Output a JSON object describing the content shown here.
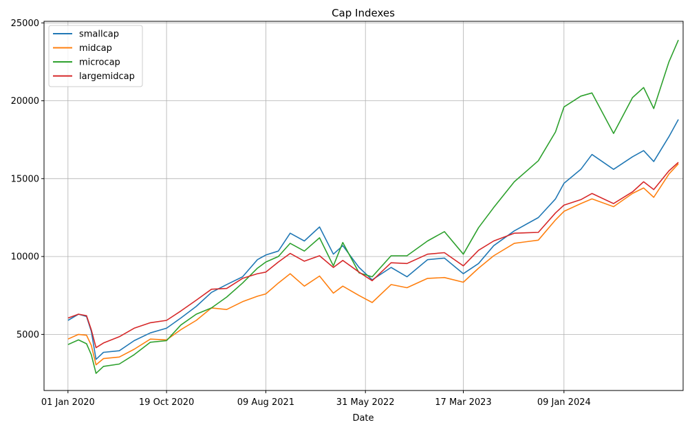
{
  "chart_data": {
    "type": "line",
    "title": "Cap Indexes",
    "xlabel": "Date",
    "ylabel": "",
    "x_tick_labels": [
      "01 Jan 2020",
      "19 Oct 2020",
      "09 Aug 2021",
      "31 May 2022",
      "17 Mar 2023",
      "09 Jan 2024"
    ],
    "x_tick_dates": [
      "2020-01-01",
      "2020-10-19",
      "2021-08-09",
      "2022-05-31",
      "2023-03-17",
      "2024-01-09"
    ],
    "xlim": [
      "2019-10-22",
      "2024-12-27"
    ],
    "y_ticks": [
      5000,
      10000,
      15000,
      20000,
      25000
    ],
    "y_tick_labels": [
      "5000",
      "10000",
      "15000",
      "20000",
      "25000"
    ],
    "ylim": [
      1400,
      25100
    ],
    "grid": true,
    "legend_position": "top-left",
    "series": [
      {
        "name": "smallcap",
        "color": "#1f77b4",
        "points": [
          [
            "2020-01-01",
            5900
          ],
          [
            "2020-02-01",
            6300
          ],
          [
            "2020-02-25",
            6150
          ],
          [
            "2020-03-10",
            5200
          ],
          [
            "2020-03-24",
            3400
          ],
          [
            "2020-04-15",
            3850
          ],
          [
            "2020-06-01",
            3950
          ],
          [
            "2020-07-15",
            4600
          ],
          [
            "2020-09-01",
            5100
          ],
          [
            "2020-10-19",
            5400
          ],
          [
            "2020-11-30",
            6050
          ],
          [
            "2021-01-15",
            6800
          ],
          [
            "2021-03-01",
            7700
          ],
          [
            "2021-04-15",
            8200
          ],
          [
            "2021-06-01",
            8700
          ],
          [
            "2021-07-15",
            9800
          ],
          [
            "2021-08-09",
            10100
          ],
          [
            "2021-09-15",
            10350
          ],
          [
            "2021-10-20",
            11500
          ],
          [
            "2021-12-01",
            11000
          ],
          [
            "2022-01-15",
            11900
          ],
          [
            "2022-02-25",
            10150
          ],
          [
            "2022-03-25",
            10700
          ],
          [
            "2022-05-12",
            9300
          ],
          [
            "2022-06-20",
            8500
          ],
          [
            "2022-08-15",
            9300
          ],
          [
            "2022-10-01",
            8700
          ],
          [
            "2022-12-01",
            9800
          ],
          [
            "2023-01-20",
            9900
          ],
          [
            "2023-03-17",
            8900
          ],
          [
            "2023-05-01",
            9550
          ],
          [
            "2023-06-15",
            10700
          ],
          [
            "2023-08-15",
            11650
          ],
          [
            "2023-10-25",
            12500
          ],
          [
            "2023-12-15",
            13700
          ],
          [
            "2024-01-09",
            14700
          ],
          [
            "2024-02-28",
            15600
          ],
          [
            "2024-04-01",
            16550
          ],
          [
            "2024-06-04",
            15600
          ],
          [
            "2024-07-30",
            16400
          ],
          [
            "2024-09-01",
            16800
          ],
          [
            "2024-10-01",
            16100
          ],
          [
            "2024-11-15",
            17700
          ],
          [
            "2024-12-13",
            18800
          ]
        ]
      },
      {
        "name": "midcap",
        "color": "#ff7f0e",
        "points": [
          [
            "2020-01-01",
            4700
          ],
          [
            "2020-02-01",
            5000
          ],
          [
            "2020-02-25",
            4950
          ],
          [
            "2020-03-10",
            4300
          ],
          [
            "2020-03-24",
            3050
          ],
          [
            "2020-04-15",
            3450
          ],
          [
            "2020-06-01",
            3550
          ],
          [
            "2020-07-15",
            4050
          ],
          [
            "2020-09-01",
            4700
          ],
          [
            "2020-10-19",
            4650
          ],
          [
            "2020-11-30",
            5300
          ],
          [
            "2021-01-15",
            5900
          ],
          [
            "2021-03-01",
            6700
          ],
          [
            "2021-04-15",
            6600
          ],
          [
            "2021-06-01",
            7100
          ],
          [
            "2021-07-15",
            7450
          ],
          [
            "2021-08-09",
            7600
          ],
          [
            "2021-09-15",
            8300
          ],
          [
            "2021-10-20",
            8900
          ],
          [
            "2021-12-01",
            8100
          ],
          [
            "2022-01-15",
            8750
          ],
          [
            "2022-02-25",
            7650
          ],
          [
            "2022-03-25",
            8100
          ],
          [
            "2022-05-12",
            7500
          ],
          [
            "2022-06-20",
            7050
          ],
          [
            "2022-08-15",
            8200
          ],
          [
            "2022-10-01",
            8000
          ],
          [
            "2022-12-01",
            8600
          ],
          [
            "2023-01-20",
            8650
          ],
          [
            "2023-03-17",
            8350
          ],
          [
            "2023-05-01",
            9250
          ],
          [
            "2023-06-15",
            10050
          ],
          [
            "2023-08-15",
            10850
          ],
          [
            "2023-10-25",
            11050
          ],
          [
            "2023-12-15",
            12350
          ],
          [
            "2024-01-09",
            12900
          ],
          [
            "2024-02-28",
            13400
          ],
          [
            "2024-04-01",
            13700
          ],
          [
            "2024-06-04",
            13200
          ],
          [
            "2024-07-30",
            14050
          ],
          [
            "2024-09-01",
            14400
          ],
          [
            "2024-10-01",
            13800
          ],
          [
            "2024-11-15",
            15300
          ],
          [
            "2024-12-13",
            15950
          ]
        ]
      },
      {
        "name": "microcap",
        "color": "#2ca02c",
        "points": [
          [
            "2020-01-01",
            4350
          ],
          [
            "2020-02-01",
            4650
          ],
          [
            "2020-02-25",
            4400
          ],
          [
            "2020-03-10",
            3700
          ],
          [
            "2020-03-24",
            2500
          ],
          [
            "2020-04-15",
            2950
          ],
          [
            "2020-06-01",
            3100
          ],
          [
            "2020-07-15",
            3700
          ],
          [
            "2020-09-01",
            4500
          ],
          [
            "2020-10-19",
            4600
          ],
          [
            "2020-11-30",
            5600
          ],
          [
            "2021-01-15",
            6300
          ],
          [
            "2021-03-01",
            6700
          ],
          [
            "2021-04-15",
            7400
          ],
          [
            "2021-06-01",
            8300
          ],
          [
            "2021-07-15",
            9250
          ],
          [
            "2021-08-09",
            9650
          ],
          [
            "2021-09-15",
            10000
          ],
          [
            "2021-10-20",
            10850
          ],
          [
            "2021-12-01",
            10350
          ],
          [
            "2022-01-15",
            11200
          ],
          [
            "2022-02-25",
            9400
          ],
          [
            "2022-03-25",
            10900
          ],
          [
            "2022-05-12",
            8950
          ],
          [
            "2022-06-20",
            8700
          ],
          [
            "2022-08-15",
            10050
          ],
          [
            "2022-10-01",
            10050
          ],
          [
            "2022-12-01",
            11000
          ],
          [
            "2023-01-20",
            11600
          ],
          [
            "2023-03-17",
            10150
          ],
          [
            "2023-05-01",
            11850
          ],
          [
            "2023-06-15",
            13150
          ],
          [
            "2023-08-15",
            14800
          ],
          [
            "2023-10-25",
            16150
          ],
          [
            "2023-12-15",
            18000
          ],
          [
            "2024-01-09",
            19600
          ],
          [
            "2024-02-28",
            20300
          ],
          [
            "2024-04-01",
            20500
          ],
          [
            "2024-06-04",
            17900
          ],
          [
            "2024-07-30",
            20200
          ],
          [
            "2024-09-01",
            20850
          ],
          [
            "2024-10-01",
            19500
          ],
          [
            "2024-11-15",
            22500
          ],
          [
            "2024-12-13",
            23900
          ]
        ]
      },
      {
        "name": "largemidcap",
        "color": "#d62728",
        "points": [
          [
            "2020-01-01",
            6050
          ],
          [
            "2020-02-01",
            6300
          ],
          [
            "2020-02-25",
            6200
          ],
          [
            "2020-03-10",
            5300
          ],
          [
            "2020-03-24",
            4150
          ],
          [
            "2020-04-15",
            4450
          ],
          [
            "2020-06-01",
            4850
          ],
          [
            "2020-07-15",
            5400
          ],
          [
            "2020-09-01",
            5750
          ],
          [
            "2020-10-19",
            5900
          ],
          [
            "2020-11-30",
            6500
          ],
          [
            "2021-01-15",
            7200
          ],
          [
            "2021-03-01",
            7900
          ],
          [
            "2021-04-15",
            7950
          ],
          [
            "2021-06-01",
            8600
          ],
          [
            "2021-07-15",
            8900
          ],
          [
            "2021-08-09",
            9000
          ],
          [
            "2021-09-15",
            9650
          ],
          [
            "2021-10-20",
            10200
          ],
          [
            "2021-12-01",
            9700
          ],
          [
            "2022-01-15",
            10050
          ],
          [
            "2022-02-25",
            9300
          ],
          [
            "2022-03-25",
            9750
          ],
          [
            "2022-05-12",
            9000
          ],
          [
            "2022-06-20",
            8450
          ],
          [
            "2022-08-15",
            9600
          ],
          [
            "2022-10-01",
            9550
          ],
          [
            "2022-12-01",
            10150
          ],
          [
            "2023-01-20",
            10250
          ],
          [
            "2023-03-17",
            9400
          ],
          [
            "2023-05-01",
            10400
          ],
          [
            "2023-06-15",
            11000
          ],
          [
            "2023-08-15",
            11500
          ],
          [
            "2023-10-25",
            11550
          ],
          [
            "2023-12-15",
            12800
          ],
          [
            "2024-01-09",
            13300
          ],
          [
            "2024-02-28",
            13650
          ],
          [
            "2024-04-01",
            14050
          ],
          [
            "2024-06-04",
            13400
          ],
          [
            "2024-07-30",
            14150
          ],
          [
            "2024-09-01",
            14800
          ],
          [
            "2024-10-01",
            14300
          ],
          [
            "2024-11-15",
            15500
          ],
          [
            "2024-12-13",
            16050
          ]
        ]
      }
    ]
  }
}
